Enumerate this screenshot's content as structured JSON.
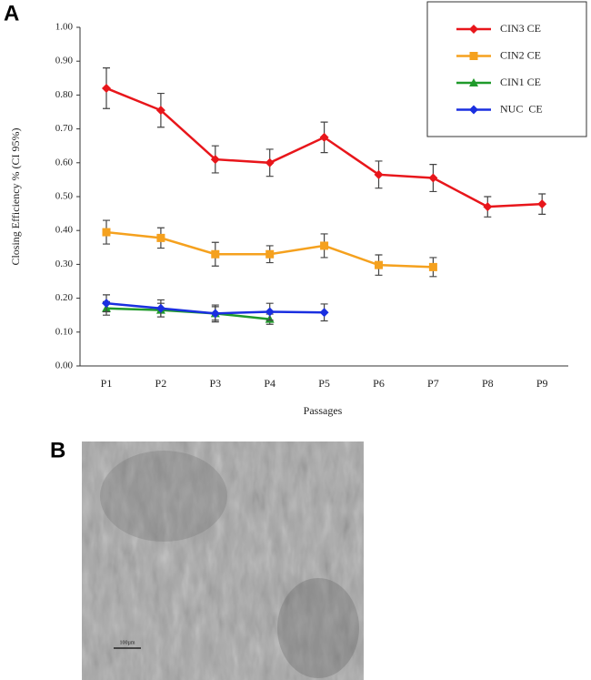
{
  "panels": {
    "a": "A",
    "b": "B"
  },
  "chart_data": {
    "type": "line",
    "x_label": "Passages",
    "y_label": "Closing Efficiency % (CI 95%)",
    "categories": [
      "P1",
      "P2",
      "P3",
      "P4",
      "P5",
      "P6",
      "P7",
      "P8",
      "P9"
    ],
    "ylim": [
      0,
      1
    ],
    "yticks": [
      {
        "value": 0,
        "label": "0.00"
      },
      {
        "value": 0.1,
        "label": "0.10"
      },
      {
        "value": 0.2,
        "label": "0.20"
      },
      {
        "value": 0.3,
        "label": "0.30"
      },
      {
        "value": 0.4,
        "label": "0.40"
      },
      {
        "value": 0.5,
        "label": "0.50"
      },
      {
        "value": 0.6,
        "label": "0.60"
      },
      {
        "value": 0.7,
        "label": "0.70"
      },
      {
        "value": 0.8,
        "label": "0.80"
      },
      {
        "value": 0.9,
        "label": "0.90"
      },
      {
        "value": 1,
        "label": "1.00"
      }
    ],
    "legend": "top-right",
    "series": [
      {
        "name": "CIN3 CE",
        "color": "#e8161b",
        "marker": "diamond",
        "values": [
          0.82,
          0.755,
          0.61,
          0.6,
          0.675,
          0.565,
          0.555,
          0.47,
          0.478
        ],
        "errors": [
          0.06,
          0.05,
          0.04,
          0.04,
          0.045,
          0.04,
          0.04,
          0.03,
          0.03
        ]
      },
      {
        "name": "CIN2 CE",
        "color": "#f5a11e",
        "marker": "square",
        "values": [
          0.395,
          0.378,
          0.33,
          0.33,
          0.355,
          0.298,
          0.292,
          null,
          null
        ],
        "errors": [
          0.035,
          0.03,
          0.035,
          0.025,
          0.035,
          0.03,
          0.028,
          null,
          null
        ]
      },
      {
        "name": "CIN1 CE",
        "color": "#1f9a2a",
        "marker": "triangle",
        "values": [
          0.17,
          0.165,
          0.155,
          0.138,
          null,
          null,
          null,
          null,
          null
        ],
        "errors": [
          0.02,
          0.02,
          0.02,
          0.015,
          null,
          null,
          null,
          null,
          null
        ]
      },
      {
        "name": "NUC  CE",
        "color": "#1a2fe0",
        "marker": "diamond",
        "values": [
          0.185,
          0.17,
          0.155,
          0.16,
          0.158,
          null,
          null,
          null,
          null
        ],
        "errors": [
          0.025,
          0.025,
          0.025,
          0.025,
          0.025,
          null,
          null,
          null,
          null
        ]
      }
    ]
  },
  "micrograph": {
    "scale_bar": "100µm"
  }
}
